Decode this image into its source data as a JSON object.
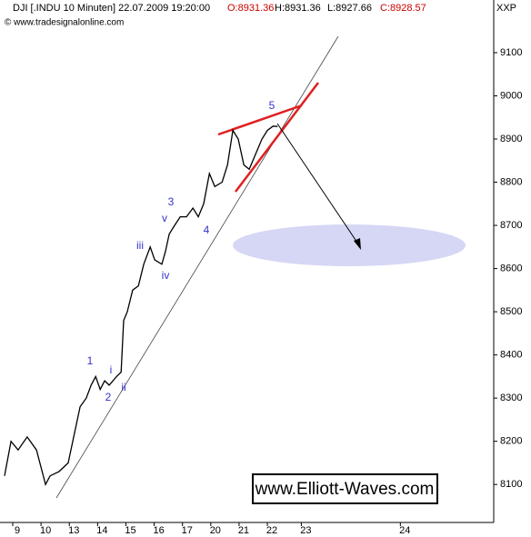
{
  "chart_data": {
    "type": "line",
    "title": "DJI [.INDU  10 Minuten] 22.07.2009 19:20:00",
    "quote": {
      "open": "O:8931.36",
      "high": "H:8931.36",
      "low": "L:8927.66",
      "close": "C:8928.57"
    },
    "exchange": "XXP",
    "source": "© www.tradesignalonline.com",
    "watermark": "www.Elliott-Waves.com",
    "series": [
      {
        "name": "DJI",
        "color": "#000000",
        "x": [
          -0.29,
          -0.06,
          0.19,
          0.51,
          0.84,
          1.16,
          1.32,
          1.64,
          1.96,
          2.12,
          2.38,
          2.6,
          2.77,
          2.93,
          3.09,
          3.25,
          3.41,
          3.67,
          3.83,
          3.92,
          4.05,
          4.24,
          4.44,
          4.63,
          4.86,
          5.02,
          5.27,
          5.4,
          5.53,
          5.72,
          5.92,
          6.14,
          6.37,
          6.56,
          6.75,
          6.95,
          7.14,
          7.4,
          7.59,
          7.78,
          7.97,
          8.17,
          8.36,
          8.55,
          8.81,
          9.0,
          9.2,
          9.36
        ],
        "values": [
          8120,
          8200,
          8180,
          8210,
          8180,
          8100,
          8120,
          8130,
          8150,
          8200,
          8280,
          8300,
          8330,
          8350,
          8320,
          8340,
          8330,
          8350,
          8360,
          8480,
          8500,
          8550,
          8560,
          8610,
          8650,
          8620,
          8610,
          8640,
          8680,
          8700,
          8720,
          8720,
          8740,
          8720,
          8750,
          8820,
          8790,
          8800,
          8840,
          8920,
          8900,
          8840,
          8830,
          8860,
          8900,
          8920,
          8930,
          8929
        ]
      }
    ],
    "annotations": [
      "1",
      "2",
      "i",
      "ii",
      "iii",
      "iv",
      "v",
      "3",
      "4",
      "5"
    ],
    "xlim": [
      -0.45,
      17.0
    ],
    "xticks": [
      {
        "value": 0,
        "label": "9"
      },
      {
        "value": 1,
        "label": "10"
      },
      {
        "value": 2,
        "label": "13"
      },
      {
        "value": 3,
        "label": "14"
      },
      {
        "value": 4,
        "label": "15"
      },
      {
        "value": 5,
        "label": "16"
      },
      {
        "value": 6,
        "label": "17"
      },
      {
        "value": 7,
        "label": "20"
      },
      {
        "value": 8,
        "label": "21"
      },
      {
        "value": 9,
        "label": "22"
      },
      {
        "value": 10.2,
        "label": "23"
      },
      {
        "value": 13.7,
        "label": "24"
      }
    ],
    "ylim": [
      8012,
      9222
    ],
    "yticks": [
      8100,
      8200,
      8300,
      8400,
      8500,
      8600,
      8700,
      8800,
      8900,
      9000,
      9100
    ],
    "grid": false
  }
}
